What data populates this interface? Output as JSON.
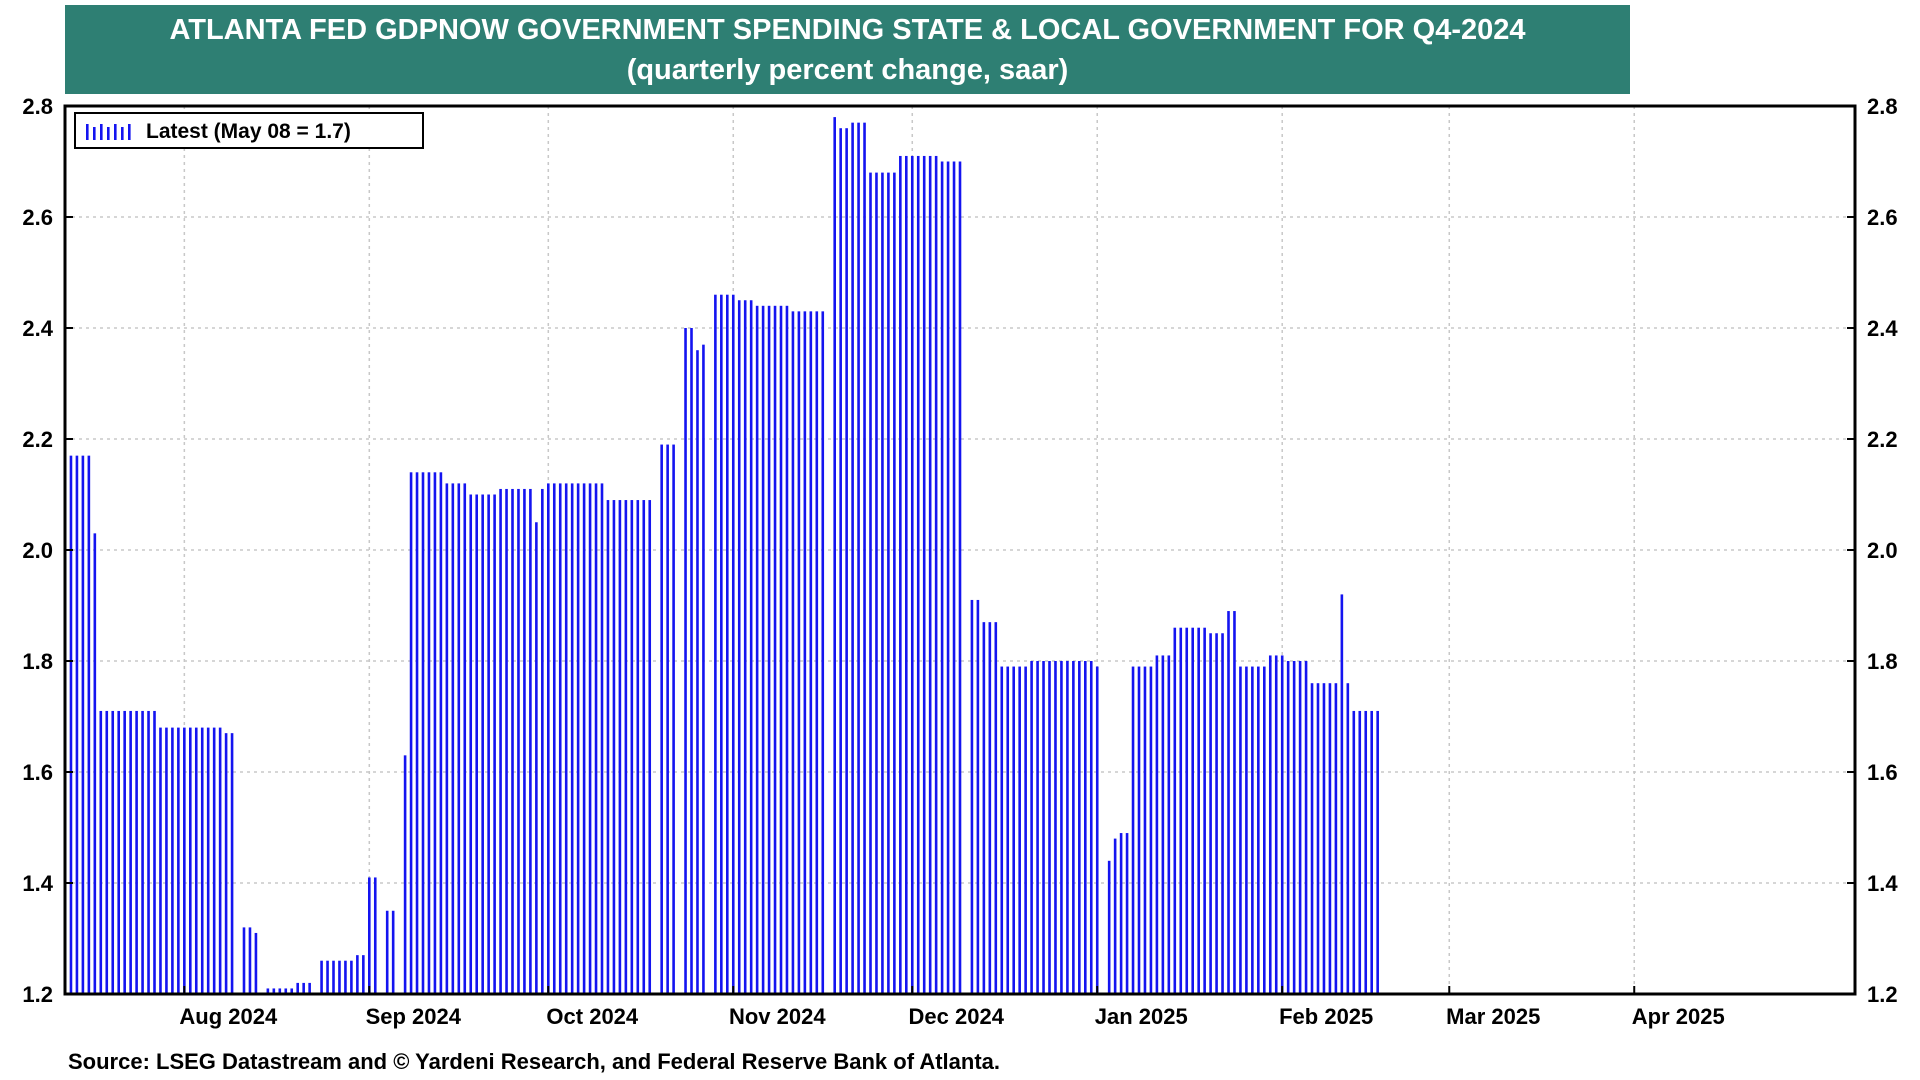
{
  "title": {
    "line1": "ATLANTA FED GDPNOW GOVERNMENT SPENDING STATE & LOCAL GOVERNMENT  FOR Q4-2024",
    "line2": "(quarterly percent change, saar)"
  },
  "source": "Source: LSEG Datastream and © Yardeni Research, and Federal Reserve Bank of Atlanta.",
  "colors": {
    "banner": "#2e7f73",
    "bars": "#1414f0",
    "grid": "#c8c8c8"
  },
  "chart_data": {
    "type": "bar",
    "legend": {
      "label": "Latest (May 08 = 1.7)",
      "placement": "top-left"
    },
    "grid": true,
    "ylim": [
      1.2,
      2.8
    ],
    "yticks": [
      "1.2",
      "1.4",
      "1.6",
      "1.8",
      "2.0",
      "2.2",
      "2.4",
      "2.6",
      "2.8"
    ],
    "date_range": [
      "2024-07-12",
      "2025-05-08"
    ],
    "x_labels": [
      {
        "date": "2024-08-01",
        "label": "Aug 2024"
      },
      {
        "date": "2024-09-01",
        "label": "Sep 2024"
      },
      {
        "date": "2024-10-01",
        "label": "Oct 2024"
      },
      {
        "date": "2024-11-01",
        "label": "Nov 2024"
      },
      {
        "date": "2024-12-01",
        "label": "Dec 2024"
      },
      {
        "date": "2025-01-01",
        "label": "Jan 2025"
      },
      {
        "date": "2025-02-01",
        "label": "Feb 2025"
      },
      {
        "date": "2025-03-01",
        "label": "Mar 2025"
      },
      {
        "date": "2025-04-01",
        "label": "Apr 2025"
      }
    ],
    "series": [
      {
        "values": [
          [
            "2024-07-13",
            2.17
          ],
          [
            "2024-07-14",
            2.17
          ],
          [
            "2024-07-15",
            2.17
          ],
          [
            "2024-07-16",
            2.17
          ],
          [
            "2024-07-17",
            2.03
          ],
          [
            "2024-07-18",
            1.71
          ],
          [
            "2024-07-19",
            1.71
          ],
          [
            "2024-07-20",
            1.71
          ],
          [
            "2024-07-21",
            1.71
          ],
          [
            "2024-07-22",
            1.71
          ],
          [
            "2024-07-23",
            1.71
          ],
          [
            "2024-07-24",
            1.71
          ],
          [
            "2024-07-25",
            1.71
          ],
          [
            "2024-07-26",
            1.71
          ],
          [
            "2024-07-27",
            1.71
          ],
          [
            "2024-07-28",
            1.68
          ],
          [
            "2024-07-29",
            1.68
          ],
          [
            "2024-07-30",
            1.68
          ],
          [
            "2024-07-31",
            1.68
          ],
          [
            "2024-08-01",
            1.68
          ],
          [
            "2024-08-02",
            1.68
          ],
          [
            "2024-08-03",
            1.68
          ],
          [
            "2024-08-04",
            1.68
          ],
          [
            "2024-08-05",
            1.68
          ],
          [
            "2024-08-06",
            1.68
          ],
          [
            "2024-08-07",
            1.68
          ],
          [
            "2024-08-08",
            1.67
          ],
          [
            "2024-08-09",
            1.67
          ],
          [
            "2024-08-11",
            1.32
          ],
          [
            "2024-08-12",
            1.32
          ],
          [
            "2024-08-13",
            1.31
          ],
          [
            "2024-08-15",
            1.21
          ],
          [
            "2024-08-16",
            1.21
          ],
          [
            "2024-08-17",
            1.21
          ],
          [
            "2024-08-18",
            1.21
          ],
          [
            "2024-08-19",
            1.21
          ],
          [
            "2024-08-20",
            1.22
          ],
          [
            "2024-08-21",
            1.22
          ],
          [
            "2024-08-22",
            1.22
          ],
          [
            "2024-08-24",
            1.26
          ],
          [
            "2024-08-25",
            1.26
          ],
          [
            "2024-08-26",
            1.26
          ],
          [
            "2024-08-27",
            1.26
          ],
          [
            "2024-08-28",
            1.26
          ],
          [
            "2024-08-29",
            1.26
          ],
          [
            "2024-08-30",
            1.27
          ],
          [
            "2024-08-31",
            1.27
          ],
          [
            "2024-09-01",
            1.41
          ],
          [
            "2024-09-02",
            1.41
          ],
          [
            "2024-09-04",
            1.35
          ],
          [
            "2024-09-05",
            1.35
          ],
          [
            "2024-09-07",
            1.63
          ],
          [
            "2024-09-08",
            2.14
          ],
          [
            "2024-09-09",
            2.14
          ],
          [
            "2024-09-10",
            2.14
          ],
          [
            "2024-09-11",
            2.14
          ],
          [
            "2024-09-12",
            2.14
          ],
          [
            "2024-09-13",
            2.14
          ],
          [
            "2024-09-14",
            2.12
          ],
          [
            "2024-09-15",
            2.12
          ],
          [
            "2024-09-16",
            2.12
          ],
          [
            "2024-09-17",
            2.12
          ],
          [
            "2024-09-18",
            2.1
          ],
          [
            "2024-09-19",
            2.1
          ],
          [
            "2024-09-20",
            2.1
          ],
          [
            "2024-09-21",
            2.1
          ],
          [
            "2024-09-22",
            2.1
          ],
          [
            "2024-09-23",
            2.11
          ],
          [
            "2024-09-24",
            2.11
          ],
          [
            "2024-09-25",
            2.11
          ],
          [
            "2024-09-26",
            2.11
          ],
          [
            "2024-09-27",
            2.11
          ],
          [
            "2024-09-28",
            2.11
          ],
          [
            "2024-09-29",
            2.05
          ],
          [
            "2024-09-30",
            2.11
          ],
          [
            "2024-10-01",
            2.12
          ],
          [
            "2024-10-02",
            2.12
          ],
          [
            "2024-10-03",
            2.12
          ],
          [
            "2024-10-04",
            2.12
          ],
          [
            "2024-10-05",
            2.12
          ],
          [
            "2024-10-06",
            2.12
          ],
          [
            "2024-10-07",
            2.12
          ],
          [
            "2024-10-08",
            2.12
          ],
          [
            "2024-10-09",
            2.12
          ],
          [
            "2024-10-10",
            2.12
          ],
          [
            "2024-10-11",
            2.09
          ],
          [
            "2024-10-12",
            2.09
          ],
          [
            "2024-10-13",
            2.09
          ],
          [
            "2024-10-14",
            2.09
          ],
          [
            "2024-10-15",
            2.09
          ],
          [
            "2024-10-16",
            2.09
          ],
          [
            "2024-10-17",
            2.09
          ],
          [
            "2024-10-18",
            2.09
          ],
          [
            "2024-10-20",
            2.19
          ],
          [
            "2024-10-21",
            2.19
          ],
          [
            "2024-10-22",
            2.19
          ],
          [
            "2024-10-24",
            2.4
          ],
          [
            "2024-10-25",
            2.4
          ],
          [
            "2024-10-26",
            2.36
          ],
          [
            "2024-10-27",
            2.37
          ],
          [
            "2024-10-29",
            2.46
          ],
          [
            "2024-10-30",
            2.46
          ],
          [
            "2024-10-31",
            2.46
          ],
          [
            "2024-11-01",
            2.46
          ],
          [
            "2024-11-02",
            2.45
          ],
          [
            "2024-11-03",
            2.45
          ],
          [
            "2024-11-04",
            2.45
          ],
          [
            "2024-11-05",
            2.44
          ],
          [
            "2024-11-06",
            2.44
          ],
          [
            "2024-11-07",
            2.44
          ],
          [
            "2024-11-08",
            2.44
          ],
          [
            "2024-11-09",
            2.44
          ],
          [
            "2024-11-10",
            2.44
          ],
          [
            "2024-11-11",
            2.43
          ],
          [
            "2024-11-12",
            2.43
          ],
          [
            "2024-11-13",
            2.43
          ],
          [
            "2024-11-14",
            2.43
          ],
          [
            "2024-11-15",
            2.43
          ],
          [
            "2024-11-16",
            2.43
          ],
          [
            "2024-11-18",
            2.78
          ],
          [
            "2024-11-19",
            2.76
          ],
          [
            "2024-11-20",
            2.76
          ],
          [
            "2024-11-21",
            2.77
          ],
          [
            "2024-11-22",
            2.77
          ],
          [
            "2024-11-23",
            2.77
          ],
          [
            "2024-11-24",
            2.68
          ],
          [
            "2024-11-25",
            2.68
          ],
          [
            "2024-11-26",
            2.68
          ],
          [
            "2024-11-27",
            2.68
          ],
          [
            "2024-11-28",
            2.68
          ],
          [
            "2024-11-29",
            2.71
          ],
          [
            "2024-11-30",
            2.71
          ],
          [
            "2024-12-01",
            2.71
          ],
          [
            "2024-12-02",
            2.71
          ],
          [
            "2024-12-03",
            2.71
          ],
          [
            "2024-12-04",
            2.71
          ],
          [
            "2024-12-05",
            2.71
          ],
          [
            "2024-12-06",
            2.7
          ],
          [
            "2024-12-07",
            2.7
          ],
          [
            "2024-12-08",
            2.7
          ],
          [
            "2024-12-09",
            2.7
          ],
          [
            "2024-12-11",
            1.91
          ],
          [
            "2024-12-12",
            1.91
          ],
          [
            "2024-12-13",
            1.87
          ],
          [
            "2024-12-14",
            1.87
          ],
          [
            "2024-12-15",
            1.87
          ],
          [
            "2024-12-16",
            1.79
          ],
          [
            "2024-12-17",
            1.79
          ],
          [
            "2024-12-18",
            1.79
          ],
          [
            "2024-12-19",
            1.79
          ],
          [
            "2024-12-20",
            1.79
          ],
          [
            "2024-12-21",
            1.8
          ],
          [
            "2024-12-22",
            1.8
          ],
          [
            "2024-12-23",
            1.8
          ],
          [
            "2024-12-24",
            1.8
          ],
          [
            "2024-12-25",
            1.8
          ],
          [
            "2024-12-26",
            1.8
          ],
          [
            "2024-12-27",
            1.8
          ],
          [
            "2024-12-28",
            1.8
          ],
          [
            "2024-12-29",
            1.8
          ],
          [
            "2024-12-30",
            1.8
          ],
          [
            "2024-12-31",
            1.8
          ],
          [
            "2025-01-01",
            1.79
          ],
          [
            "2025-01-03",
            1.44
          ],
          [
            "2025-01-04",
            1.48
          ],
          [
            "2025-01-05",
            1.49
          ],
          [
            "2025-01-06",
            1.49
          ],
          [
            "2025-01-07",
            1.79
          ],
          [
            "2025-01-08",
            1.79
          ],
          [
            "2025-01-09",
            1.79
          ],
          [
            "2025-01-10",
            1.79
          ],
          [
            "2025-01-11",
            1.81
          ],
          [
            "2025-01-12",
            1.81
          ],
          [
            "2025-01-13",
            1.81
          ],
          [
            "2025-01-14",
            1.86
          ],
          [
            "2025-01-15",
            1.86
          ],
          [
            "2025-01-16",
            1.86
          ],
          [
            "2025-01-17",
            1.86
          ],
          [
            "2025-01-18",
            1.86
          ],
          [
            "2025-01-19",
            1.86
          ],
          [
            "2025-01-20",
            1.85
          ],
          [
            "2025-01-21",
            1.85
          ],
          [
            "2025-01-22",
            1.85
          ],
          [
            "2025-01-23",
            1.89
          ],
          [
            "2025-01-24",
            1.89
          ],
          [
            "2025-01-25",
            1.79
          ],
          [
            "2025-01-26",
            1.79
          ],
          [
            "2025-01-27",
            1.79
          ],
          [
            "2025-01-28",
            1.79
          ],
          [
            "2025-01-29",
            1.79
          ],
          [
            "2025-01-30",
            1.81
          ],
          [
            "2025-01-31",
            1.81
          ],
          [
            "2025-02-01",
            1.81
          ],
          [
            "2025-02-02",
            1.8
          ],
          [
            "2025-02-03",
            1.8
          ],
          [
            "2025-02-04",
            1.8
          ],
          [
            "2025-02-05",
            1.8
          ],
          [
            "2025-02-06",
            1.76
          ],
          [
            "2025-02-07",
            1.76
          ],
          [
            "2025-02-08",
            1.76
          ],
          [
            "2025-02-09",
            1.76
          ],
          [
            "2025-02-10",
            1.76
          ],
          [
            "2025-02-11",
            1.92
          ],
          [
            "2025-02-12",
            1.76
          ],
          [
            "2025-02-13",
            1.71
          ],
          [
            "2025-02-14",
            1.71
          ],
          [
            "2025-02-15",
            1.71
          ],
          [
            "2025-02-16",
            1.71
          ],
          [
            "2025-02-17",
            1.71
          ]
        ]
      }
    ]
  }
}
